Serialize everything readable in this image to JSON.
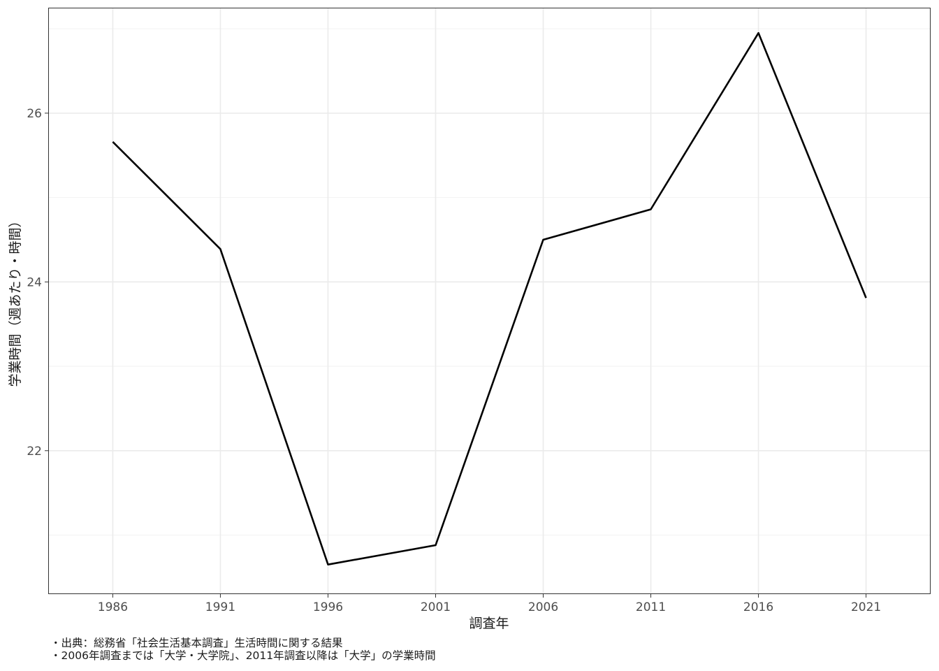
{
  "chart_data": {
    "type": "line",
    "x": [
      1986,
      1991,
      1996,
      2001,
      2006,
      2011,
      2016,
      2021
    ],
    "values": [
      25.66,
      24.39,
      20.65,
      20.88,
      24.5,
      24.86,
      26.95,
      23.81
    ],
    "xlabel": "調査年",
    "ylabel": "学業時間（週あたり・時間）",
    "xlim": [
      1983,
      2024
    ],
    "ylim": [
      20.3,
      27.25
    ],
    "xticks": [
      "1986",
      "1991",
      "1996",
      "2001",
      "2006",
      "2011",
      "2016",
      "2021"
    ],
    "yticks": [
      "22",
      "24",
      "26"
    ],
    "grid": true,
    "line_color": "#000000"
  },
  "captions": [
    "・出典：総務省「社会生活基本調査」生活時間に関する結果",
    "・2006年調査までは「大学・大学院」、2011年調査以降は「大学」の学業時間"
  ]
}
